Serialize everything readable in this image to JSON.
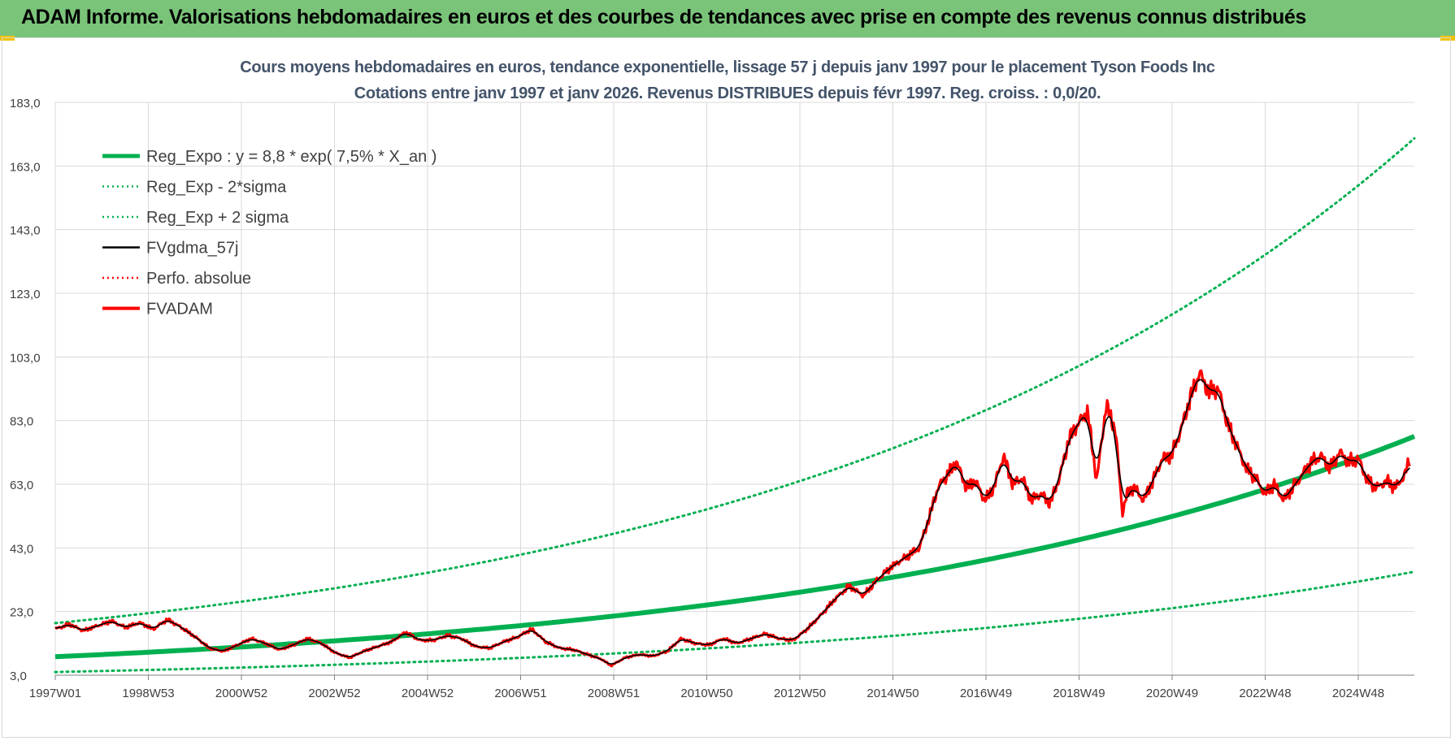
{
  "header": {
    "title": "ADAM Informe. Valorisations hebdomadaires en euros et des courbes de tendances avec prise en compte des revenus connus distribués"
  },
  "chart_data": {
    "type": "line",
    "title_line1": "Cours moyens hebdomadaires en euros, tendance exponentielle, lissage 57 j depuis janv 1997  pour le placement Tyson Foods Inc",
    "title_line2": "Cotations entre janv 1997 et janv 2026. Revenus DISTRIBUES depuis févr 1997. Reg. croiss. : 0,0/20.",
    "ylim": [
      3.0,
      183.0
    ],
    "y_ticks": [
      "3,0",
      "23,0",
      "43,0",
      "63,0",
      "83,0",
      "103,0",
      "123,0",
      "143,0",
      "163,0",
      "183,0"
    ],
    "x_tick_labels": [
      "1997W01",
      "1998W53",
      "2000W52",
      "2002W52",
      "2004W52",
      "2006W51",
      "2008W51",
      "2010W50",
      "2012W50",
      "2014W50",
      "2016W49",
      "2018W49",
      "2020W49",
      "2022W48",
      "2024W48"
    ],
    "x_range_years": [
      1997.0,
      2026.1
    ],
    "grid": true,
    "legend_position": "top-left",
    "regression": {
      "a": 8.8,
      "rate": 0.075
    },
    "series": [
      {
        "name": "Reg_Expo : y = 8,8 * exp( 7,5% *  X_an )",
        "color": "#00b050",
        "style": "solid-thick"
      },
      {
        "name": "Reg_Exp - 2*sigma",
        "color": "#00b050",
        "style": "dotted",
        "factor": 0.455
      },
      {
        "name": "Reg_Exp + 2 sigma",
        "color": "#00b050",
        "style": "dotted",
        "factor": 2.2
      },
      {
        "name": "FVgdma_57j",
        "color": "#000000",
        "style": "solid-thin"
      },
      {
        "name": "Perfo. absolue",
        "color": "#ff0000",
        "style": "dotted"
      },
      {
        "name": "FVADAM",
        "color": "#ff0000",
        "style": "solid-medium"
      }
    ],
    "price": {
      "x": [
        1997.0,
        1997.3,
        1997.6,
        1997.9,
        1998.2,
        1998.5,
        1998.8,
        1999.1,
        1999.4,
        1999.7,
        2000.0,
        2000.3,
        2000.6,
        2000.9,
        2001.2,
        2001.5,
        2001.8,
        2002.1,
        2002.4,
        2002.7,
        2003.0,
        2003.3,
        2003.6,
        2003.9,
        2004.2,
        2004.5,
        2004.8,
        2005.1,
        2005.4,
        2005.7,
        2006.0,
        2006.3,
        2006.6,
        2006.9,
        2007.2,
        2007.5,
        2007.8,
        2008.1,
        2008.4,
        2008.7,
        2008.9,
        2009.2,
        2009.5,
        2009.8,
        2010.1,
        2010.4,
        2010.7,
        2011.0,
        2011.3,
        2011.6,
        2011.9,
        2012.2,
        2012.5,
        2012.8,
        2013.1,
        2013.4,
        2013.7,
        2014.0,
        2014.3,
        2014.6,
        2014.9,
        2015.2,
        2015.5,
        2015.7,
        2015.9,
        2016.1,
        2016.3,
        2016.5,
        2016.7,
        2016.9,
        2017.1,
        2017.3,
        2017.5,
        2017.7,
        2017.9,
        2018.1,
        2018.3,
        2018.5,
        2018.7,
        2018.9,
        2019.1,
        2019.3,
        2019.5,
        2019.7,
        2019.85,
        2019.95,
        2020.1,
        2020.3,
        2020.5,
        2020.7,
        2020.9,
        2021.1,
        2021.3,
        2021.5,
        2021.7,
        2021.9,
        2022.1,
        2022.3,
        2022.5,
        2022.7,
        2022.9,
        2023.1,
        2023.3,
        2023.5,
        2023.7,
        2023.9,
        2024.1,
        2024.3,
        2024.5,
        2024.7,
        2024.9,
        2025.1,
        2025.3,
        2025.5,
        2025.7,
        2025.9,
        2026.0
      ],
      "y": [
        17.5,
        19.0,
        17.0,
        18.5,
        20.0,
        18.0,
        19.5,
        17.5,
        20.5,
        18.0,
        15.0,
        11.5,
        10.5,
        12.5,
        14.5,
        13.0,
        11.0,
        12.5,
        14.5,
        13.0,
        10.0,
        8.5,
        10.5,
        12.0,
        13.5,
        16.5,
        14.0,
        14.0,
        15.5,
        14.5,
        12.0,
        11.5,
        13.5,
        15.0,
        17.5,
        13.5,
        11.5,
        11.0,
        9.5,
        8.0,
        6.0,
        8.5,
        9.5,
        9.0,
        10.5,
        14.5,
        13.0,
        12.5,
        14.5,
        13.0,
        14.5,
        16.0,
        14.5,
        14.0,
        17.5,
        22.0,
        27.0,
        31.0,
        28.0,
        33.0,
        37.0,
        40.0,
        43.0,
        52.0,
        62.0,
        66.0,
        70.0,
        62.0,
        64.0,
        58.0,
        62.0,
        72.0,
        63.0,
        65.0,
        58.0,
        60.0,
        57.0,
        65.0,
        77.0,
        82.0,
        86.0,
        64.0,
        88.0,
        80.0,
        54.0,
        60.0,
        62.0,
        58.0,
        64.0,
        71.0,
        72.0,
        80.0,
        90.0,
        98.0,
        92.0,
        93.0,
        82.0,
        75.0,
        68.0,
        65.0,
        60.0,
        63.0,
        58.0,
        62.0,
        66.0,
        70.0,
        72.0,
        68.0,
        73.0,
        70.0,
        71.0,
        64.0,
        62.0,
        64.0,
        62.0,
        66.0,
        71.0
      ]
    }
  }
}
